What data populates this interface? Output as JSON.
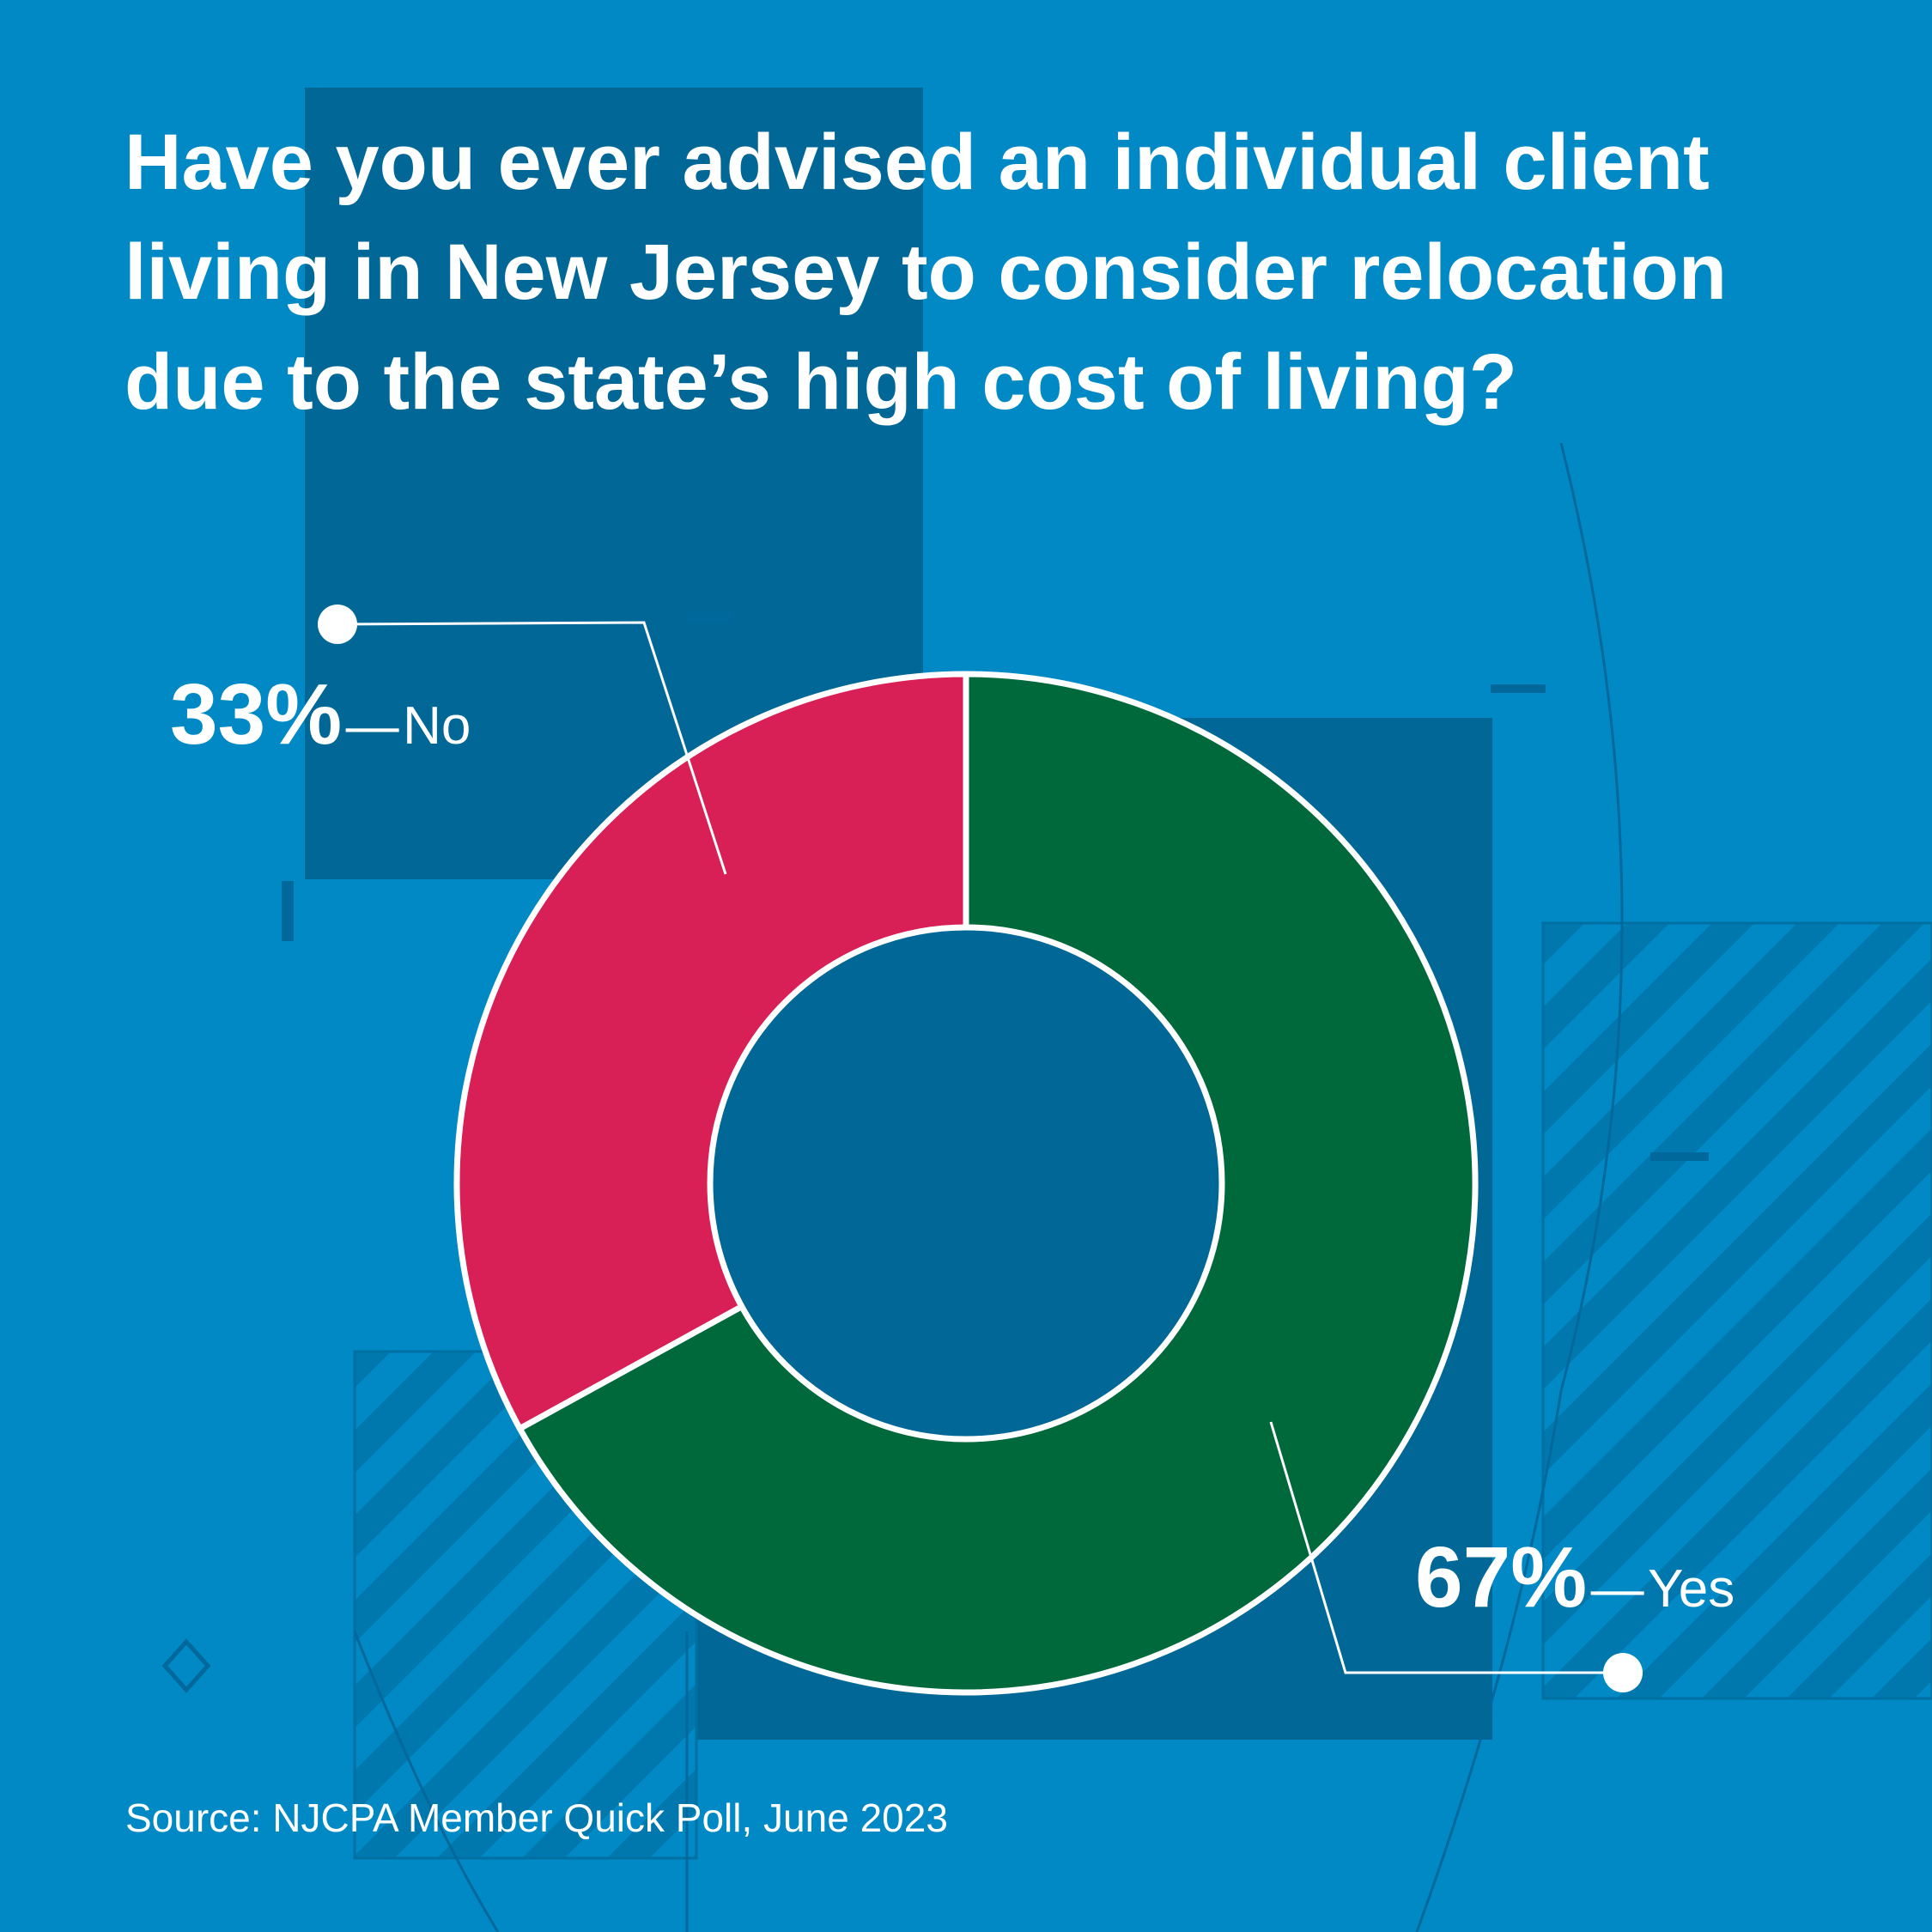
{
  "title": "Have you ever advised an individual client living in New Jersey to consider relocation due to the state’s high cost of living?",
  "source": "Source: NJCPA Member Quick Poll, June 2023",
  "colors": {
    "background": "#0089c5",
    "panel": "#006796",
    "yes": "#00693b",
    "no": "#d81f56",
    "outline": "#ffffff"
  },
  "labels": {
    "separator": "—"
  },
  "chart_data": {
    "type": "pie",
    "title": "Have you ever advised an individual client living in New Jersey to consider relocation due to the state’s high cost of living?",
    "categories": [
      "Yes",
      "No"
    ],
    "values": [
      67,
      33
    ],
    "unit": "%",
    "data_labels": [
      "67%",
      "33%"
    ],
    "donut": true,
    "colors": [
      "#00693b",
      "#d81f56"
    ]
  }
}
